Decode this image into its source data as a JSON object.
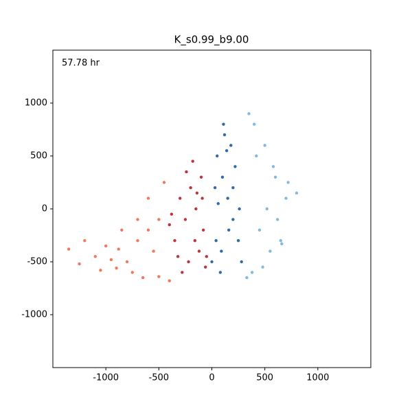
{
  "chart_data": {
    "type": "scatter",
    "title": "K_s0.99_b9.00",
    "annotation": "57.78 hr",
    "xlim": [
      -1500,
      1500
    ],
    "ylim": [
      -1500,
      1500
    ],
    "xticks": [
      -1000,
      -500,
      0,
      500,
      1000
    ],
    "yticks": [
      -1000,
      -500,
      0,
      500,
      1000
    ],
    "grid": false,
    "series": [
      {
        "color": "#f0603f",
        "x": [
          -1350,
          -1200,
          -1100,
          -1000,
          -900,
          -800,
          -700,
          -600,
          -500,
          -950,
          -850,
          -750,
          -650,
          -550,
          -450,
          -700,
          -600,
          -500,
          -400,
          -1250,
          -1050,
          -880
        ],
        "values": [
          -380,
          -300,
          -450,
          -350,
          -560,
          -500,
          -300,
          -200,
          -100,
          -480,
          -200,
          -600,
          -650,
          -400,
          250,
          -100,
          100,
          -640,
          -680,
          -520,
          -580,
          -380
        ]
      },
      {
        "color": "#b11218",
        "x": [
          -100,
          -200,
          -300,
          -150,
          -250,
          -80,
          -350,
          -120,
          -220,
          -60,
          -180,
          -280,
          -400,
          -140,
          -320,
          -90,
          -240,
          -160,
          -50,
          -380
        ],
        "values": [
          300,
          200,
          100,
          0,
          -100,
          -200,
          -300,
          -400,
          -500,
          -550,
          450,
          -600,
          -150,
          150,
          -450,
          100,
          350,
          -300,
          -450,
          -50
        ]
      },
      {
        "color": "#6baed6",
        "x": [
          400,
          500,
          600,
          700,
          800,
          450,
          550,
          650,
          350,
          420,
          520,
          480,
          620,
          380,
          580,
          330,
          720,
          660
        ],
        "values": [
          800,
          600,
          300,
          100,
          150,
          -200,
          -400,
          -300,
          900,
          500,
          0,
          -550,
          -100,
          -600,
          400,
          -650,
          250,
          -330
        ]
      },
      {
        "color": "#08519c",
        "x": [
          50,
          100,
          150,
          200,
          250,
          0,
          80,
          180,
          120,
          220,
          30,
          160,
          260,
          90,
          40,
          200,
          140,
          60,
          280,
          110
        ],
        "values": [
          500,
          300,
          100,
          -100,
          -300,
          -500,
          -600,
          600,
          700,
          400,
          200,
          -200,
          0,
          -400,
          -300,
          200,
          550,
          50,
          -500,
          800
        ]
      }
    ]
  }
}
